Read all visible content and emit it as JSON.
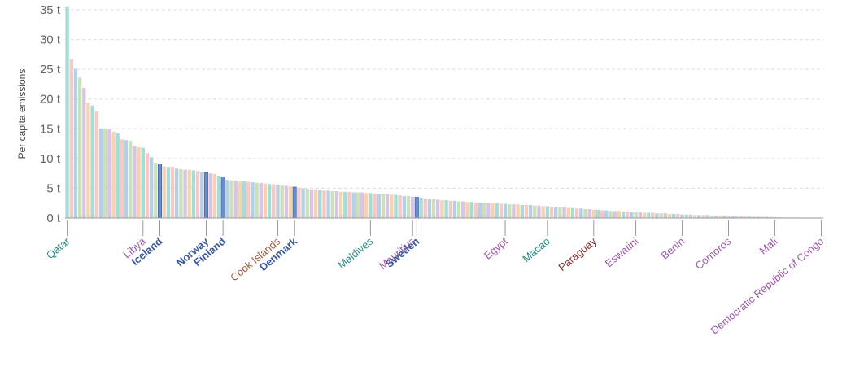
{
  "chart_data": {
    "type": "bar",
    "y_label": "Per capita emissions",
    "ylim": [
      0,
      35
    ],
    "yticks": [
      {
        "value": 0,
        "label": "0 t"
      },
      {
        "value": 5,
        "label": "5 t"
      },
      {
        "value": 10,
        "label": "10 t"
      },
      {
        "value": 15,
        "label": "15 t"
      },
      {
        "value": 20,
        "label": "20 t"
      },
      {
        "value": 25,
        "label": "25 t"
      },
      {
        "value": 30,
        "label": "30 t"
      },
      {
        "value": 35,
        "label": "35 t"
      }
    ],
    "grid": true,
    "palette": [
      "#a6dcd6",
      "#f7c8c4",
      "#b5d0e6",
      "#c9e0b8",
      "#d9c4e3",
      "#f5d3b0"
    ],
    "highlight_color": "#6a8ccc",
    "highlighted": [
      "Iceland",
      "Norway",
      "Finland",
      "Denmark",
      "Sweden"
    ],
    "label_colors": {
      "Qatar": "#2a8c87",
      "Libya": "#9a5aa8",
      "Iceland": "#3d5a99",
      "Norway": "#3d5a99",
      "Finland": "#3d5a99",
      "Cook Islands": "#9a5b3a",
      "Denmark": "#3d5a99",
      "Maldives": "#2a8c87",
      "Mauritius": "#9a5aa8",
      "Sweden": "#3d5a99",
      "Egypt": "#9a5aa8",
      "Macao": "#2a8c87",
      "Paraguay": "#8a3030",
      "Eswatini": "#9a5aa8",
      "Benin": "#9a5aa8",
      "Comoros": "#9a5aa8",
      "Mali": "#9a5aa8",
      "Democratic Republic of Congo": "#9a5aa8"
    },
    "categories": [
      "Qatar",
      null,
      null,
      null,
      null,
      null,
      null,
      null,
      null,
      null,
      null,
      null,
      null,
      null,
      null,
      null,
      null,
      null,
      "Libya",
      null,
      null,
      null,
      "Iceland",
      null,
      null,
      null,
      null,
      null,
      null,
      null,
      null,
      null,
      null,
      "Norway",
      null,
      null,
      null,
      "Finland",
      null,
      null,
      null,
      null,
      null,
      null,
      null,
      null,
      null,
      null,
      null,
      null,
      "Cook Islands",
      null,
      null,
      null,
      "Denmark",
      null,
      null,
      null,
      null,
      null,
      null,
      null,
      null,
      null,
      null,
      null,
      null,
      null,
      null,
      null,
      null,
      null,
      "Maldives",
      null,
      null,
      null,
      null,
      null,
      null,
      null,
      null,
      null,
      "Mauritius",
      "Sweden",
      null,
      null,
      null,
      null,
      null,
      null,
      null,
      null,
      null,
      null,
      null,
      null,
      null,
      null,
      null,
      null,
      null,
      null,
      null,
      null,
      "Egypt",
      null,
      null,
      null,
      null,
      null,
      null,
      null,
      null,
      null,
      "Macao",
      null,
      null,
      null,
      null,
      null,
      null,
      null,
      null,
      null,
      null,
      "Paraguay",
      null,
      null,
      null,
      null,
      null,
      null,
      null,
      null,
      null,
      "Eswatini",
      null,
      null,
      null,
      null,
      null,
      null,
      null,
      null,
      null,
      null,
      "Benin",
      null,
      null,
      null,
      null,
      null,
      null,
      null,
      null,
      null,
      null,
      "Comoros",
      null,
      null,
      null,
      null,
      null,
      null,
      null,
      null,
      null,
      null,
      "Mali",
      null,
      null,
      null,
      null,
      null,
      null,
      null,
      null,
      null,
      null,
      "Democratic Republic of Congo"
    ],
    "values": [
      35.6,
      26.7,
      25.1,
      23.6,
      21.9,
      19.3,
      18.9,
      18.0,
      15.0,
      15.0,
      14.9,
      14.5,
      14.2,
      13.2,
      13.1,
      13.0,
      12.1,
      11.9,
      11.8,
      10.9,
      10.2,
      9.3,
      9.1,
      8.7,
      8.6,
      8.6,
      8.3,
      8.2,
      8.1,
      8.1,
      8.0,
      7.9,
      7.7,
      7.6,
      7.5,
      7.4,
      7.1,
      6.9,
      6.4,
      6.3,
      6.3,
      6.2,
      6.2,
      6.1,
      6.0,
      5.9,
      5.9,
      5.8,
      5.7,
      5.7,
      5.6,
      5.5,
      5.4,
      5.3,
      5.2,
      5.1,
      5.0,
      4.9,
      4.8,
      4.8,
      4.7,
      4.6,
      4.6,
      4.5,
      4.5,
      4.4,
      4.4,
      4.4,
      4.3,
      4.3,
      4.3,
      4.2,
      4.2,
      4.1,
      4.1,
      4.0,
      4.0,
      3.9,
      3.9,
      3.8,
      3.7,
      3.7,
      3.6,
      3.5,
      3.4,
      3.3,
      3.2,
      3.2,
      3.1,
      3.0,
      3.0,
      2.9,
      2.9,
      2.8,
      2.8,
      2.7,
      2.7,
      2.6,
      2.6,
      2.6,
      2.5,
      2.5,
      2.5,
      2.4,
      2.4,
      2.3,
      2.3,
      2.3,
      2.2,
      2.2,
      2.2,
      2.1,
      2.1,
      2.0,
      2.0,
      1.9,
      1.9,
      1.8,
      1.8,
      1.7,
      1.7,
      1.6,
      1.6,
      1.5,
      1.5,
      1.4,
      1.4,
      1.3,
      1.3,
      1.2,
      1.2,
      1.2,
      1.1,
      1.1,
      1.0,
      1.0,
      1.0,
      0.9,
      0.9,
      0.9,
      0.8,
      0.8,
      0.8,
      0.7,
      0.7,
      0.7,
      0.6,
      0.6,
      0.6,
      0.5,
      0.5,
      0.5,
      0.5,
      0.4,
      0.4,
      0.4,
      0.4,
      0.35,
      0.3,
      0.3,
      0.3,
      0.3,
      0.25,
      0.25,
      0.2,
      0.2,
      0.2,
      0.2,
      0.15,
      0.15,
      0.1,
      0.1,
      0.1,
      0.1,
      0.08,
      0.07,
      0.06,
      0.05,
      0.04,
      0.03
    ]
  }
}
